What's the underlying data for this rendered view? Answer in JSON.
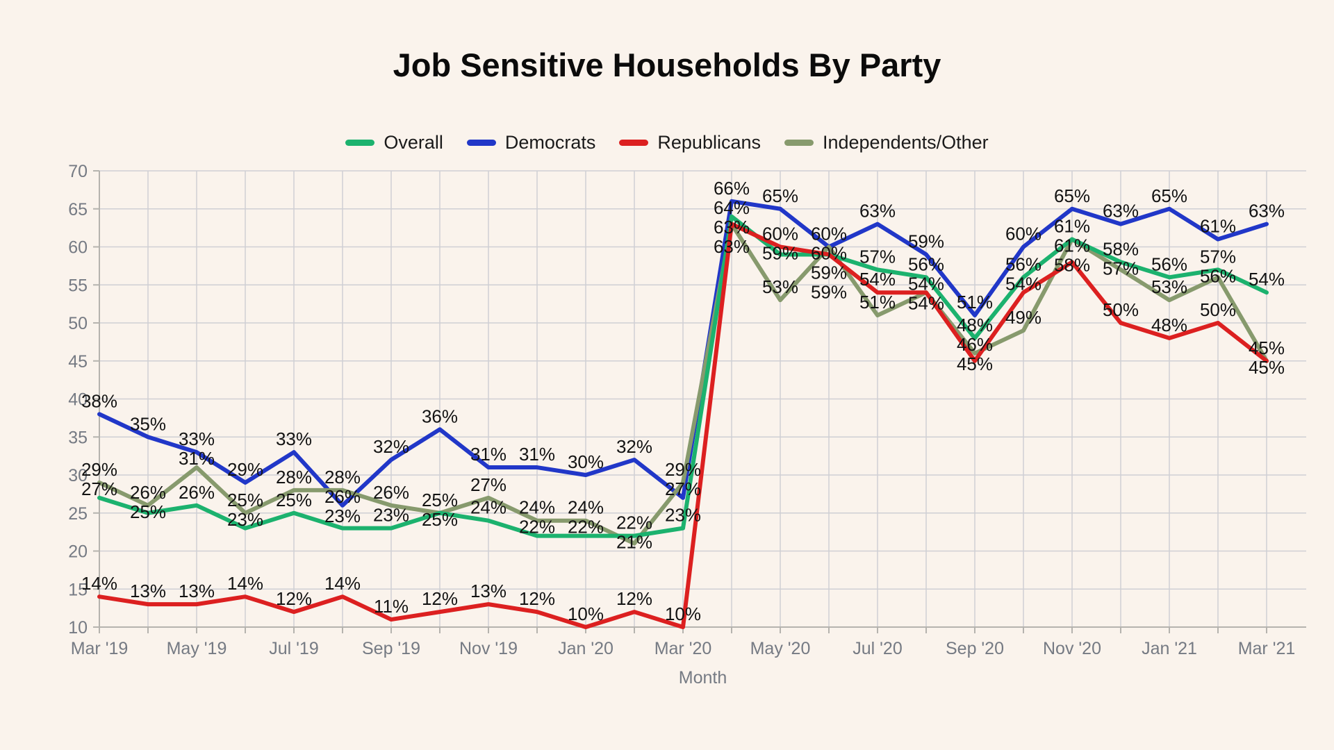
{
  "title": "Job Sensitive Households By Party",
  "chart_data": {
    "type": "line",
    "title": "Job Sensitive Households By Party",
    "xlabel": "Month",
    "ylabel": "",
    "ylim": [
      10,
      70
    ],
    "y_ticks": [
      10,
      15,
      20,
      25,
      30,
      35,
      40,
      45,
      50,
      55,
      60,
      65,
      70
    ],
    "grid": true,
    "legend_position": "top",
    "background_color": "#faf3ec",
    "grid_color": "#cfcfd4",
    "data_label_format": "{value}%",
    "x": [
      "Mar '19",
      "Apr '19",
      "May '19",
      "Jun '19",
      "Jul '19",
      "Aug '19",
      "Sep '19",
      "Oct '19",
      "Nov '19",
      "Dec '19",
      "Jan '20",
      "Feb '20",
      "Mar '20",
      "Apr '20",
      "May '20",
      "Jun '20",
      "Jul '20",
      "Aug '20",
      "Sep '20",
      "Oct '20",
      "Nov '20",
      "Dec '20",
      "Jan '21",
      "Feb '21",
      "Mar '21"
    ],
    "x_tick_labels": [
      "Mar '19",
      "May '19",
      "Jul '19",
      "Sep '19",
      "Nov '19",
      "Jan '20",
      "Mar '20",
      "May '20",
      "Jul '20",
      "Sep '20",
      "Nov '20",
      "Jan '21",
      "Mar '21"
    ],
    "series": [
      {
        "name": "Overall",
        "color": "#1cb26e",
        "values": [
          27,
          25,
          26,
          23,
          25,
          23,
          23,
          25,
          24,
          22,
          22,
          22,
          23,
          64,
          59,
          59,
          57,
          56,
          48,
          56,
          61,
          58,
          56,
          57,
          54
        ]
      },
      {
        "name": "Democrats",
        "color": "#2137c8",
        "values": [
          38,
          35,
          33,
          29,
          33,
          26,
          32,
          36,
          31,
          31,
          30,
          32,
          27,
          66,
          65,
          60,
          63,
          59,
          51,
          60,
          65,
          63,
          65,
          61,
          63
        ]
      },
      {
        "name": "Republicans",
        "color": "#dc2020",
        "values": [
          14,
          13,
          13,
          14,
          12,
          14,
          11,
          12,
          13,
          12,
          10,
          12,
          10,
          63,
          60,
          59,
          54,
          54,
          45,
          54,
          58,
          50,
          48,
          50,
          45
        ]
      },
      {
        "name": "Independents/Other",
        "color": "#879a6d",
        "values": [
          29,
          26,
          31,
          25,
          28,
          28,
          26,
          25,
          27,
          24,
          24,
          21,
          29,
          63,
          53,
          60,
          51,
          54,
          46,
          49,
          61,
          57,
          53,
          56,
          45
        ]
      }
    ]
  }
}
